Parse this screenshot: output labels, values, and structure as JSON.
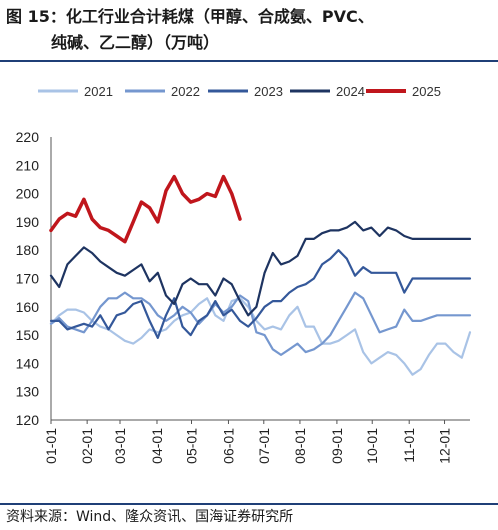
{
  "figure": {
    "title_line1": "图 15：化工行业合计耗煤（甲醇、合成氨、PVC、",
    "title_line2": "纯碱、乙二醇）（万吨）",
    "source": "资料来源：Wind、隆众资讯、国海证券研究所"
  },
  "colors": {
    "2021": "#a9c3e6",
    "2022": "#7597cf",
    "2023": "#34589a",
    "2024": "#1e3461",
    "2025": "#c0161c",
    "rule": "#1f3f77"
  },
  "chart_data": {
    "type": "line",
    "xlabel": "",
    "ylabel": "",
    "ylim": [
      120,
      220
    ],
    "yticks": [
      120,
      130,
      140,
      150,
      160,
      170,
      180,
      190,
      200,
      210,
      220
    ],
    "xlim": [
      1,
      52
    ],
    "xticks": [
      {
        "label": "01-01",
        "week": 1
      },
      {
        "label": "02-01",
        "week": 5.4
      },
      {
        "label": "03-01",
        "week": 9.4
      },
      {
        "label": "04-01",
        "week": 13.9
      },
      {
        "label": "05-01",
        "week": 18.1
      },
      {
        "label": "06-01",
        "week": 22.6
      },
      {
        "label": "07-01",
        "week": 26.9
      },
      {
        "label": "08-01",
        "week": 31.3
      },
      {
        "label": "09-01",
        "week": 35.8
      },
      {
        "label": "10-01",
        "week": 40.1
      },
      {
        "label": "11-01",
        "week": 44.6
      },
      {
        "label": "12-01",
        "week": 48.9
      }
    ],
    "legend_position": "top",
    "series": [
      {
        "name": "2021",
        "values": [
          154,
          157,
          159,
          159,
          158,
          155,
          153,
          152,
          150,
          148,
          147,
          149,
          152,
          151,
          152,
          155,
          157,
          158,
          161,
          163,
          157,
          155,
          162,
          163,
          160,
          155,
          152,
          153,
          152,
          157,
          160,
          153,
          153,
          147,
          147,
          148,
          150,
          152,
          144,
          140,
          142,
          144,
          143,
          140,
          136,
          138,
          143,
          147,
          147,
          144,
          142,
          151
        ]
      },
      {
        "name": "2022",
        "values": [
          154,
          156,
          153,
          152,
          151,
          155,
          160,
          163,
          163,
          165,
          163,
          163,
          161,
          157,
          155,
          157,
          160,
          158,
          154,
          157,
          161,
          158,
          160,
          164,
          162,
          151,
          150,
          145,
          143,
          145,
          147,
          144,
          145,
          147,
          150,
          155,
          160,
          165,
          163,
          157,
          151,
          152,
          153,
          159,
          155,
          155,
          156,
          157,
          157,
          157,
          157,
          157
        ]
      },
      {
        "name": "2023",
        "values": [
          155,
          155,
          152,
          153,
          154,
          153,
          157,
          152,
          157,
          158,
          161,
          162,
          155,
          149,
          157,
          163,
          153,
          150,
          155,
          157,
          162,
          157,
          159,
          155,
          153,
          156,
          160,
          162,
          162,
          165,
          167,
          168,
          170,
          175,
          177,
          180,
          177,
          171,
          174,
          172,
          172,
          172,
          172,
          165,
          170,
          170,
          170,
          170,
          170,
          170,
          170,
          170
        ]
      },
      {
        "name": "2024",
        "values": [
          171,
          167,
          175,
          178,
          181,
          179,
          176,
          174,
          172,
          171,
          173,
          175,
          169,
          172,
          164,
          161,
          168,
          170,
          168,
          168,
          164,
          170,
          168,
          162,
          157,
          160,
          172,
          179,
          175,
          176,
          178,
          184,
          184,
          186,
          187,
          187,
          188,
          190,
          187,
          188,
          185,
          188,
          187,
          185,
          184,
          184,
          184,
          184,
          184,
          184,
          184,
          184
        ]
      },
      {
        "name": "2025",
        "values": [
          187,
          191,
          193,
          192,
          198,
          191,
          188,
          187,
          185,
          183,
          190,
          197,
          195,
          190,
          201,
          206,
          200,
          197,
          198,
          200,
          199,
          206,
          200,
          191
        ]
      }
    ]
  }
}
